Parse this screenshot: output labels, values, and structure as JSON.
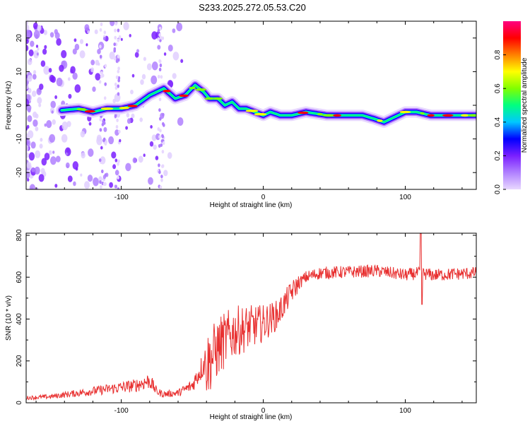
{
  "title": "S233.2025.272.05.53.C20",
  "chart_data": [
    {
      "type": "heatmap",
      "name": "spectrogram",
      "xlabel": "Height of straight line (km)",
      "ylabel": "Frequency (Hz)",
      "xlim": [
        -167,
        150
      ],
      "ylim": [
        -25,
        25
      ],
      "xticks": [
        -100,
        0,
        100
      ],
      "xtick_labels": [
        "-100",
        "0",
        "100"
      ],
      "yticks": [
        -20,
        -10,
        0,
        10,
        20
      ],
      "ytick_labels": [
        "-20",
        "-10",
        "0",
        "10",
        "20"
      ],
      "colorbar": {
        "label": "Normalized spectral amplitude",
        "range": [
          0,
          1
        ],
        "ticks": [
          0.0,
          0.2,
          0.4,
          0.6,
          0.8
        ],
        "tick_labels": [
          "0.0",
          "0.2",
          "0.4",
          "0.6",
          "0.8"
        ],
        "colormap": [
          "#e8d8ff",
          "#b080ff",
          "#7a1fff",
          "#0000ff",
          "#00c8ff",
          "#00ff80",
          "#80ff00",
          "#ffff00",
          "#ff8000",
          "#ff0000",
          "#ff0080"
        ]
      },
      "ridge": {
        "x": [
          -142,
          -130,
          -120,
          -110,
          -100,
          -90,
          -80,
          -70,
          -62,
          -55,
          -48,
          -42,
          -38,
          -32,
          -27,
          -22,
          -17,
          -12,
          -6,
          0,
          5,
          12,
          20,
          30,
          45,
          60,
          70,
          78,
          85,
          90,
          95,
          100,
          108,
          118,
          130,
          150
        ],
        "y": [
          -1.5,
          -1,
          -2,
          -1,
          -1,
          0,
          3,
          5,
          2,
          3,
          6,
          4,
          2,
          2,
          0,
          1,
          -1,
          -1,
          -2,
          -3,
          -2,
          -3,
          -3,
          -2,
          -3,
          -3,
          -3,
          -4,
          -5,
          -4,
          -3,
          -2,
          -2,
          -3,
          -3,
          -3
        ]
      }
    },
    {
      "type": "line",
      "name": "snr",
      "xlabel": "Height of straight line (km)",
      "ylabel": "SNR (10 * v/v)",
      "xlim": [
        -167,
        150
      ],
      "ylim": [
        0,
        810
      ],
      "xticks": [
        -100,
        0,
        100
      ],
      "xtick_labels": [
        "-100",
        "0",
        "100"
      ],
      "yticks": [
        0,
        200,
        400,
        600,
        800
      ],
      "ytick_labels": [
        "0",
        "200",
        "400",
        "600",
        "800"
      ],
      "color": "#e83030",
      "envelope": {
        "x": [
          -167,
          -150,
          -130,
          -110,
          -90,
          -80,
          -75,
          -70,
          -60,
          -50,
          -40,
          -30,
          -20,
          -10,
          0,
          10,
          20,
          25,
          30,
          40,
          60,
          80,
          100,
          110,
          120,
          150
        ],
        "y": [
          20,
          25,
          40,
          55,
          70,
          90,
          45,
          35,
          40,
          70,
          180,
          280,
          340,
          360,
          380,
          420,
          530,
          570,
          600,
          620,
          625,
          630,
          610,
          620,
          610,
          620
        ]
      },
      "spike": {
        "x": 111,
        "peak": 808,
        "trough": 470
      }
    }
  ]
}
